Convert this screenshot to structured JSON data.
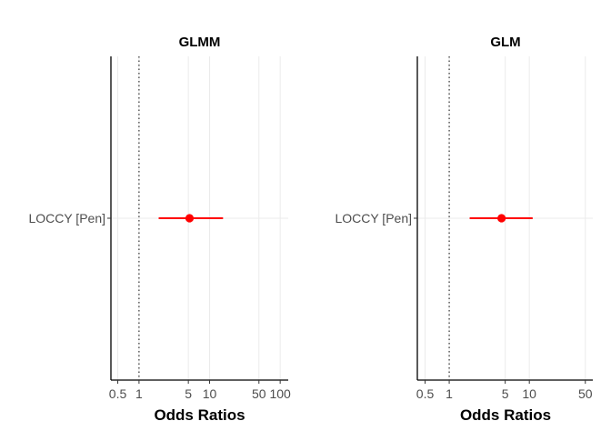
{
  "chart_data": [
    {
      "type": "forest",
      "title": "GLMM",
      "xlabel": "Odds Ratios",
      "ylabel": "",
      "x_scale": "log",
      "xlim": [
        0.4,
        130
      ],
      "x_ticks": [
        0.5,
        1,
        5,
        10,
        50,
        100
      ],
      "x_tick_labels": [
        "0.5",
        "1",
        "5",
        "10",
        "50",
        "100"
      ],
      "reference_line": 1,
      "grid": "vertical major gridlines",
      "categories": [
        "LOCCY [Pen]"
      ],
      "points": [
        {
          "label": "LOCCY [Pen]",
          "estimate": 5.2,
          "ci_low": 1.9,
          "ci_high": 15.5,
          "color": "#ff0000"
        }
      ]
    },
    {
      "type": "forest",
      "title": "GLM",
      "xlabel": "Odds Ratios",
      "ylabel": "",
      "x_scale": "log",
      "xlim": [
        0.4,
        62
      ],
      "x_ticks": [
        0.5,
        1,
        5,
        10,
        50
      ],
      "x_tick_labels": [
        "0.5",
        "1",
        "5",
        "10",
        "50"
      ],
      "reference_line": 1,
      "grid": "vertical major gridlines",
      "categories": [
        "LOCCY [Pen]"
      ],
      "points": [
        {
          "label": "LOCCY [Pen]",
          "estimate": 4.5,
          "ci_low": 1.8,
          "ci_high": 11.0,
          "color": "#ff0000"
        }
      ]
    }
  ]
}
